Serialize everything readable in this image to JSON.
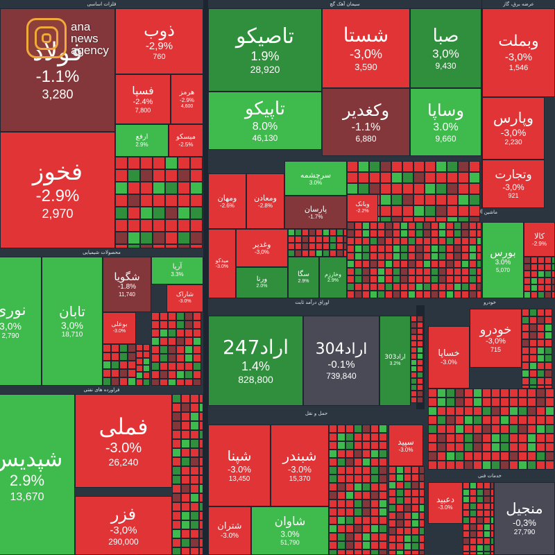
{
  "brand": {
    "line1": "ana",
    "line2": "news",
    "line3": "agency",
    "accent": "#f0a93a"
  },
  "colors": {
    "red": "#e03437",
    "green": "#3fba4c",
    "dark_green": "#2f8f3c",
    "brown": "#84373b",
    "gray": "#4a4a57",
    "background": "#1c2530"
  },
  "chart_data": {
    "type": "heatmap",
    "title": "",
    "sectors": [
      {
        "name": "فلزات اساسی"
      },
      {
        "name": "سیمان آهک گچ"
      },
      {
        "name": "عرضه برق، گاز"
      },
      {
        "name": "محصولات شیمیایی"
      },
      {
        "name": "ماشین آلات"
      },
      {
        "name": "اوراق درآمد ثابت"
      },
      {
        "name": "خودرو"
      },
      {
        "name": "فراورده های نفتی"
      },
      {
        "name": "حمل و نقل"
      },
      {
        "name": "خدمات فنی"
      }
    ],
    "tiles": [
      {
        "name": "فولاد",
        "change": "-1.1%",
        "price": "3,280"
      },
      {
        "name": "فخوز",
        "change": "-2.9%",
        "price": "2,970"
      },
      {
        "name": "ذوب",
        "change": "-2,9%",
        "price": "760"
      },
      {
        "name": "فسپا",
        "change": "-2.4%",
        "price": "7,800"
      },
      {
        "name": "هرمز",
        "change": "-2.9%",
        "price": "4,600"
      },
      {
        "name": "ارفع",
        "change": "2.9%",
        "price": ""
      },
      {
        "name": "میسکو",
        "change": "-2.5%",
        "price": ""
      },
      {
        "name": "تاصیکو",
        "change": "1.9%",
        "price": "28,920"
      },
      {
        "name": "شستا",
        "change": "-3,0%",
        "price": "3,590"
      },
      {
        "name": "صبا",
        "change": "3,0%",
        "price": "9,430"
      },
      {
        "name": "تاپیکو",
        "change": "8.0%",
        "price": "46,130"
      },
      {
        "name": "وکغدیر",
        "change": "-1.1%",
        "price": "6,880"
      },
      {
        "name": "وساپا",
        "change": "3.0%",
        "price": "9,660"
      },
      {
        "name": "وبملت",
        "change": "-3,0%",
        "price": "1,546"
      },
      {
        "name": "وپارس",
        "change": "-3,0%",
        "price": "2,230"
      },
      {
        "name": "وتجارت",
        "change": "-3,0%",
        "price": "921"
      },
      {
        "name": "سرچشمه",
        "change": "3.0%",
        "price": ""
      },
      {
        "name": "ومهان",
        "change": "-2.6%",
        "price": ""
      },
      {
        "name": "ومعادن",
        "change": "-2.8%",
        "price": ""
      },
      {
        "name": "پارسان",
        "change": "-1.7%",
        "price": ""
      },
      {
        "name": "وبانک",
        "change": "-2.2%",
        "price": ""
      },
      {
        "name": "وغدیر",
        "change": "-3,0%",
        "price": ""
      },
      {
        "name": "میدکو",
        "change": "-3.0%",
        "price": ""
      },
      {
        "name": "سگا",
        "change": "2.9%",
        "price": ""
      },
      {
        "name": "ورنا",
        "change": "2.0%",
        "price": ""
      },
      {
        "name": "وخارزم",
        "change": "2.9%",
        "price": ""
      },
      {
        "name": "بورس",
        "change": "3.0%",
        "price": "5,070"
      },
      {
        "name": "کالا",
        "change": "-2.9%",
        "price": ""
      },
      {
        "name": "تابان",
        "change": "3,0%",
        "price": "18,710"
      },
      {
        "name": "نوری",
        "change": "3,0%",
        "price": "2,790"
      },
      {
        "name": "شگویا",
        "change": "-1.8%",
        "price": "11,740"
      },
      {
        "name": "آریا",
        "change": "3.3%",
        "price": ""
      },
      {
        "name": "شاراک",
        "change": "-3.0%",
        "price": ""
      },
      {
        "name": "بوعلی",
        "change": "-3.0%",
        "price": ""
      },
      {
        "name": "اراد247",
        "change": "1.4%",
        "price": "828,800"
      },
      {
        "name": "اراد304",
        "change": "-0.1%",
        "price": "739,840"
      },
      {
        "name": "اراد303",
        "change": "3.2%",
        "price": ""
      },
      {
        "name": "خودرو",
        "change": "-3,0%",
        "price": "715"
      },
      {
        "name": "خساپا",
        "change": "-3.0%",
        "price": ""
      },
      {
        "name": "شپدیس",
        "change": "2.9%",
        "price": "13,670"
      },
      {
        "name": "فملی",
        "change": "-3.0%",
        "price": "26,240"
      },
      {
        "name": "فزر",
        "change": "-3,0%",
        "price": "290,000"
      },
      {
        "name": "شپنا",
        "change": "-3.0%",
        "price": "13,450"
      },
      {
        "name": "شبندر",
        "change": "-3.0%",
        "price": "15,370"
      },
      {
        "name": "شاوان",
        "change": "3.0%",
        "price": "51,790"
      },
      {
        "name": "شتران",
        "change": "-3.0%",
        "price": ""
      },
      {
        "name": "سپید",
        "change": "-3.0%",
        "price": ""
      },
      {
        "name": "دعبید",
        "change": "-3.0%",
        "price": ""
      },
      {
        "name": "منجیل",
        "change": "-0,3%",
        "price": "27,790"
      }
    ]
  }
}
